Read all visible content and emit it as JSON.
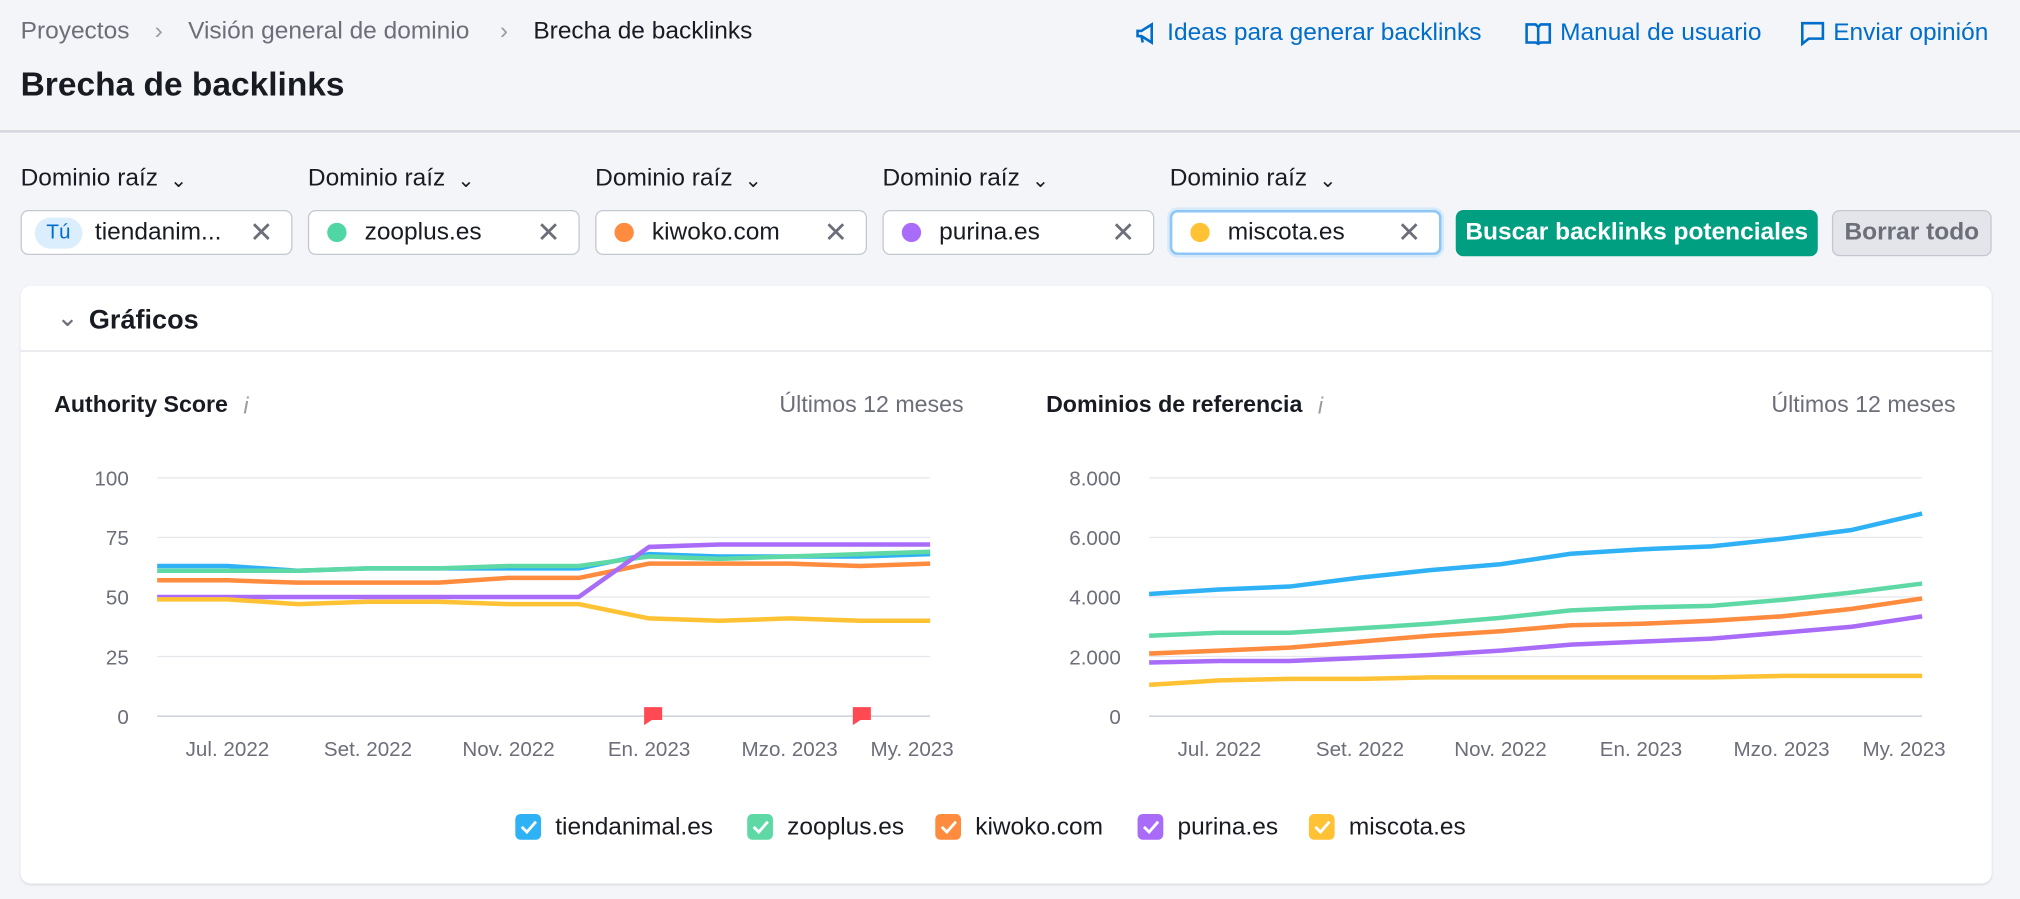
{
  "header": {
    "breadcrumb": [
      "Proyectos",
      "Visión general de dominio",
      "Brecha de backlinks"
    ],
    "title": "Brecha de backlinks",
    "links": [
      "Ideas para generar backlinks",
      "Manual de usuario",
      "Enviar opinión"
    ]
  },
  "filters": [
    {
      "label": "Dominio raíz",
      "badge": "Tú",
      "value": "tiendanim..."
    },
    {
      "label": "Dominio raíz",
      "value": "zooplus.es",
      "color": "#4fd6a4"
    },
    {
      "label": "Dominio raíz",
      "value": "kiwoko.com",
      "color": "#ff8b3e"
    },
    {
      "label": "Dominio raíz",
      "value": "purina.es",
      "color": "#a96cf8"
    },
    {
      "label": "Dominio raíz",
      "value": "miscota.es",
      "color": "#ffc234"
    }
  ],
  "buttons": {
    "search": "Buscar backlinks potenciales",
    "clear": "Borrar todo"
  },
  "section_title": "Gráficos",
  "chart_data": [
    {
      "type": "line",
      "title": "Authority Score",
      "period": "Últimos 12 meses",
      "categories": [
        null,
        "Jul. 2022",
        null,
        "Set. 2022",
        null,
        "Nov. 2022",
        null,
        "En. 2023",
        null,
        "Mzo. 2023",
        null,
        "My. 2023"
      ],
      "ylim": [
        0,
        100
      ],
      "yticks": [
        0,
        25,
        50,
        75,
        100
      ],
      "grid": true,
      "series": [
        {
          "name": "tiendanimal.es",
          "color": "#2fb1f6",
          "values": [
            63,
            63,
            61,
            62,
            62,
            62,
            62,
            68,
            67,
            67,
            67,
            68
          ]
        },
        {
          "name": "zooplus.es",
          "color": "#5ed9a6",
          "values": [
            61,
            61,
            61,
            62,
            62,
            63,
            63,
            67,
            66,
            67,
            68,
            69
          ]
        },
        {
          "name": "kiwoko.com",
          "color": "#ff8b3e",
          "values": [
            57,
            57,
            56,
            56,
            56,
            58,
            58,
            64,
            64,
            64,
            63,
            64
          ]
        },
        {
          "name": "purina.es",
          "color": "#a96cf8",
          "values": [
            50,
            50,
            50,
            50,
            50,
            50,
            50,
            71,
            72,
            72,
            72,
            72
          ]
        },
        {
          "name": "miscota.es",
          "color": "#ffc234",
          "values": [
            49,
            49,
            47,
            48,
            48,
            47,
            47,
            41,
            40,
            41,
            40,
            40
          ]
        }
      ]
    },
    {
      "type": "line",
      "title": "Dominios de referencia",
      "period": "Últimos 12 meses",
      "categories": [
        null,
        "Jul. 2022",
        null,
        "Set. 2022",
        null,
        "Nov. 2022",
        null,
        "En. 2023",
        null,
        "Mzo. 2023",
        null,
        "My. 2023"
      ],
      "ylim": [
        0,
        8000
      ],
      "yticks": [
        0,
        {
          "value": 2000,
          "label": "2.000"
        },
        {
          "value": 4000,
          "label": "4.000"
        },
        {
          "value": 6000,
          "label": "6.000"
        },
        {
          "value": 8000,
          "label": "8.000"
        }
      ],
      "grid": true,
      "series": [
        {
          "color": "#2fb1f6",
          "values": [
            4100,
            4250,
            4350,
            4650,
            4900,
            5100,
            5450,
            5600,
            5700,
            5950,
            6250,
            6800
          ]
        },
        {
          "color": "#5ed9a6",
          "values": [
            2700,
            2800,
            2800,
            2950,
            3100,
            3300,
            3550,
            3650,
            3700,
            3900,
            4150,
            4450
          ]
        },
        {
          "color": "#ff8b3e",
          "values": [
            2100,
            2200,
            2300,
            2500,
            2700,
            2850,
            3050,
            3100,
            3200,
            3350,
            3600,
            3950
          ]
        },
        {
          "color": "#a96cf8",
          "values": [
            1800,
            1850,
            1850,
            1950,
            2050,
            2200,
            2400,
            2500,
            2600,
            2800,
            3000,
            3350
          ]
        },
        {
          "color": "#ffc234",
          "values": [
            1050,
            1200,
            1250,
            1250,
            1300,
            1300,
            1300,
            1300,
            1300,
            1350,
            1350,
            1350
          ]
        }
      ]
    }
  ]
}
